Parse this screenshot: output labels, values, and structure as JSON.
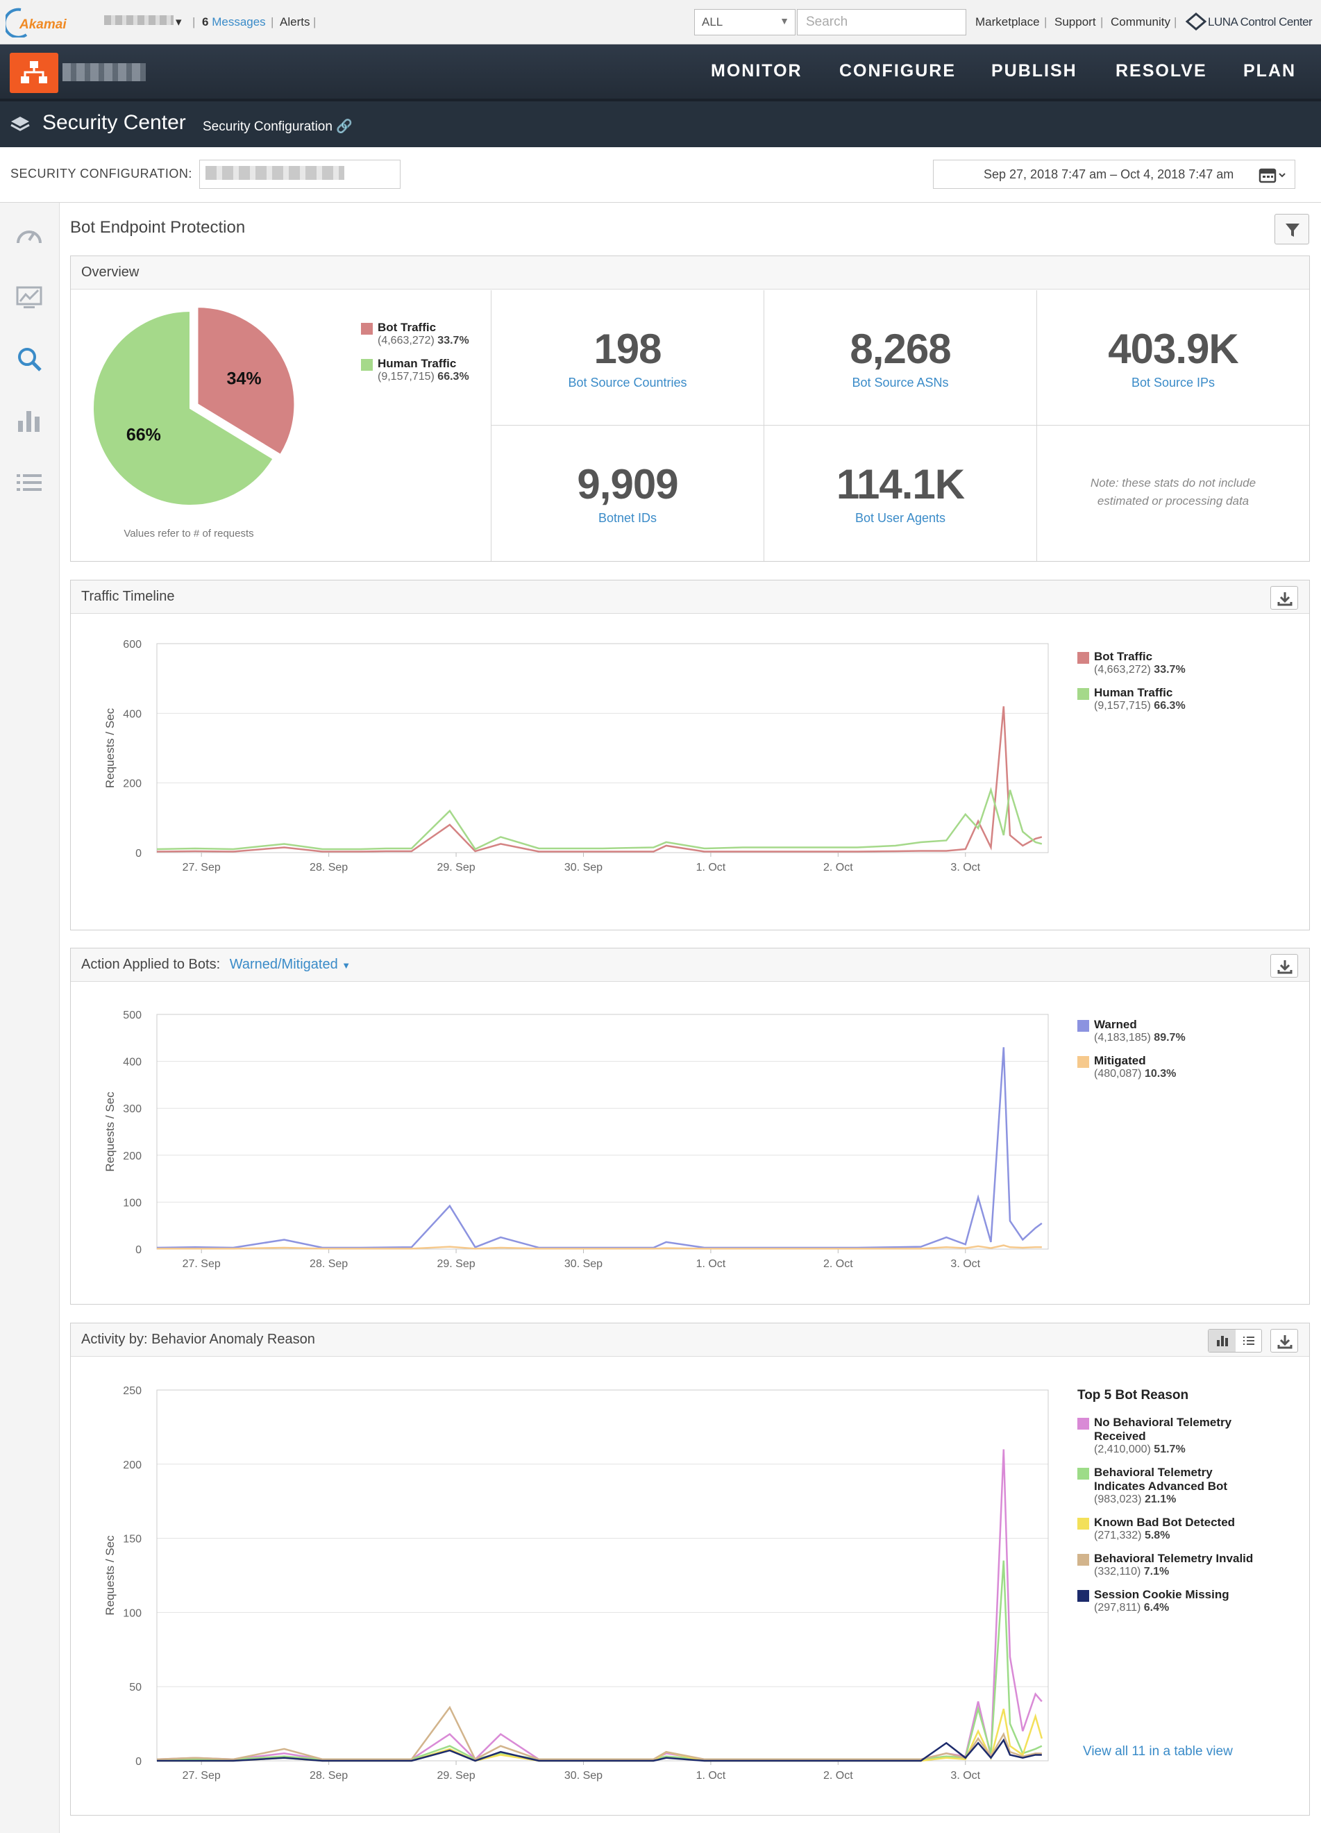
{
  "topbar": {
    "messages_count": "6",
    "messages_label": "Messages",
    "alerts_label": "Alerts",
    "scope_select": "ALL",
    "search_placeholder": "Search",
    "links": [
      "Marketplace",
      "Support",
      "Community"
    ],
    "luna_label": "LUNA Control Center",
    "logo_text": "Akamai"
  },
  "nav": {
    "items": [
      "MONITOR",
      "CONFIGURE",
      "PUBLISH",
      "RESOLVE",
      "PLAN"
    ]
  },
  "subnav": {
    "title": "Security Center",
    "breadcrumb": "Security Configuration"
  },
  "config": {
    "label": "SECURITY CONFIGURATION:",
    "date_range": "Sep 27, 2018  7:47 am  –  Oct 4, 2018  7:47 am"
  },
  "page": {
    "title": "Bot Endpoint Protection"
  },
  "overview": {
    "title": "Overview",
    "pie_note": "Values refer to # of requests",
    "pie_slices": [
      {
        "label": "34%",
        "name": "Bot Traffic",
        "count": "(4,663,272)",
        "pct": "33.7%",
        "value": 33.7,
        "color": "#d48383"
      },
      {
        "label": "66%",
        "name": "Human Traffic",
        "count": "(9,157,715)",
        "pct": "66.3%",
        "value": 66.3,
        "color": "#a5d98a"
      }
    ],
    "stats": [
      {
        "value": "198",
        "label": "Bot Source Countries"
      },
      {
        "value": "8,268",
        "label": "Bot Source ASNs"
      },
      {
        "value": "403.9K",
        "label": "Bot Source IPs"
      },
      {
        "value": "9,909",
        "label": "Botnet IDs"
      },
      {
        "value": "114.1K",
        "label": "Bot User Agents"
      }
    ],
    "note": "Note: these stats do not include estimated or processing data"
  },
  "timeline": {
    "title": "Traffic Timeline",
    "legend": [
      {
        "name": "Bot Traffic",
        "count": "(4,663,272)",
        "pct": "33.7%",
        "color": "#d48383"
      },
      {
        "name": "Human Traffic",
        "count": "(9,157,715)",
        "pct": "66.3%",
        "color": "#a5d98a"
      }
    ]
  },
  "actions": {
    "title": "Action Applied to Bots:",
    "filter": "Warned/Mitigated",
    "legend": [
      {
        "name": "Warned",
        "count": "(4,183,185)",
        "pct": "89.7%",
        "color": "#8c93e0"
      },
      {
        "name": "Mitigated",
        "count": "(480,087)",
        "pct": "10.3%",
        "color": "#f6c98c"
      }
    ]
  },
  "activity": {
    "title": "Activity by: Behavior Anomaly Reason",
    "legend_title": "Top 5 Bot Reason",
    "legend": [
      {
        "name": "No Behavioral Telemetry Received",
        "count": "(2,410,000)",
        "pct": "51.7%",
        "color": "#d98ad6"
      },
      {
        "name": "Behavioral Telemetry Indicates Advanced Bot",
        "count": "(983,023)",
        "pct": "21.1%",
        "color": "#9ddc88"
      },
      {
        "name": "Known Bad Bot Detected",
        "count": "(271,332)",
        "pct": "5.8%",
        "color": "#f3e05a"
      },
      {
        "name": "Behavioral Telemetry Invalid",
        "count": "(332,110)",
        "pct": "7.1%",
        "color": "#d2b48c"
      },
      {
        "name": "Session Cookie Missing",
        "count": "(297,811)",
        "pct": "6.4%",
        "color": "#1c2a6b"
      }
    ],
    "view_all": "View all 11 in a table view"
  },
  "chart_data": [
    {
      "type": "pie",
      "categories": [
        "Bot Traffic",
        "Human Traffic"
      ],
      "values": [
        33.7,
        66.3
      ],
      "labels": [
        "34%",
        "66%"
      ]
    },
    {
      "type": "line",
      "title": "Traffic Timeline",
      "ylabel": "Requests / Sec",
      "ylim": [
        0,
        600
      ],
      "yticks": [
        0,
        200,
        400,
        600
      ],
      "xticks": [
        "27. Sep",
        "28. Sep",
        "29. Sep",
        "30. Sep",
        "1. Oct",
        "2. Oct",
        "3. Oct"
      ],
      "x": [
        0,
        0.3,
        0.6,
        1.0,
        1.3,
        1.6,
        1.8,
        2.0,
        2.3,
        2.5,
        2.7,
        3.0,
        3.5,
        3.9,
        4.0,
        4.3,
        4.6,
        5.0,
        5.5,
        5.8,
        6.0,
        6.2,
        6.35,
        6.45,
        6.55,
        6.65,
        6.7,
        6.8,
        6.9,
        6.95
      ],
      "series": [
        {
          "name": "Bot Traffic",
          "color": "#d48383",
          "values": [
            3,
            4,
            3,
            15,
            3,
            3,
            4,
            4,
            80,
            4,
            25,
            3,
            3,
            3,
            20,
            3,
            3,
            3,
            3,
            4,
            5,
            5,
            10,
            90,
            15,
            420,
            50,
            20,
            40,
            45
          ]
        },
        {
          "name": "Human Traffic",
          "color": "#a5d98a",
          "values": [
            10,
            12,
            10,
            25,
            10,
            10,
            12,
            12,
            120,
            10,
            45,
            12,
            12,
            15,
            30,
            12,
            15,
            15,
            15,
            20,
            30,
            35,
            110,
            70,
            180,
            50,
            180,
            60,
            30,
            25
          ]
        }
      ]
    },
    {
      "type": "area",
      "title": "Action Applied to Bots: Warned/Mitigated",
      "ylabel": "Requests / Sec",
      "ylim": [
        0,
        500
      ],
      "yticks": [
        0,
        100,
        200,
        300,
        400,
        500
      ],
      "xticks": [
        "27. Sep",
        "28. Sep",
        "29. Sep",
        "30. Sep",
        "1. Oct",
        "2. Oct",
        "3. Oct"
      ],
      "x": [
        0,
        0.3,
        0.6,
        1.0,
        1.3,
        1.6,
        2.0,
        2.3,
        2.5,
        2.7,
        3.0,
        3.5,
        3.9,
        4.0,
        4.3,
        4.6,
        5.0,
        5.5,
        5.8,
        6.0,
        6.2,
        6.35,
        6.45,
        6.55,
        6.65,
        6.7,
        6.8,
        6.9,
        6.95
      ],
      "series": [
        {
          "name": "Warned",
          "color": "#8c93e0",
          "values": [
            3,
            4,
            3,
            20,
            3,
            3,
            4,
            92,
            4,
            25,
            3,
            3,
            3,
            15,
            3,
            3,
            3,
            3,
            4,
            5,
            25,
            10,
            110,
            15,
            430,
            60,
            20,
            45,
            55
          ]
        },
        {
          "name": "Mitigated",
          "color": "#f6c98c",
          "values": [
            1,
            1,
            1,
            3,
            1,
            1,
            1,
            5,
            1,
            3,
            1,
            1,
            1,
            2,
            1,
            1,
            1,
            1,
            1,
            1,
            4,
            2,
            6,
            2,
            8,
            4,
            3,
            4,
            4
          ]
        }
      ]
    },
    {
      "type": "line",
      "title": "Activity by: Behavior Anomaly Reason",
      "ylabel": "Requests / Sec",
      "ylim": [
        0,
        250
      ],
      "yticks": [
        0,
        50,
        100,
        150,
        200,
        250
      ],
      "xticks": [
        "27. Sep",
        "28. Sep",
        "29. Sep",
        "30. Sep",
        "1. Oct",
        "2. Oct",
        "3. Oct"
      ],
      "x": [
        0,
        0.3,
        0.6,
        1.0,
        1.3,
        1.6,
        2.0,
        2.3,
        2.5,
        2.7,
        3.0,
        3.5,
        3.9,
        4.0,
        4.3,
        4.6,
        5.0,
        5.5,
        5.8,
        6.0,
        6.2,
        6.35,
        6.45,
        6.55,
        6.65,
        6.7,
        6.8,
        6.9,
        6.95
      ],
      "series": [
        {
          "name": "No Behavioral Telemetry Received",
          "color": "#d98ad6",
          "values": [
            1,
            2,
            1,
            5,
            1,
            1,
            1,
            18,
            1,
            18,
            1,
            1,
            1,
            5,
            1,
            1,
            1,
            1,
            1,
            1,
            5,
            3,
            40,
            3,
            210,
            70,
            20,
            45,
            40
          ]
        },
        {
          "name": "Behavioral Telemetry Indicates Advanced Bot",
          "color": "#9ddc88",
          "values": [
            1,
            1,
            1,
            3,
            1,
            1,
            1,
            10,
            1,
            5,
            1,
            1,
            1,
            3,
            1,
            1,
            1,
            1,
            1,
            1,
            3,
            2,
            35,
            5,
            135,
            25,
            5,
            8,
            10
          ]
        },
        {
          "name": "Known Bad Bot Detected",
          "color": "#f3e05a",
          "values": [
            0,
            0,
            0,
            2,
            0,
            0,
            0,
            8,
            0,
            4,
            0,
            0,
            0,
            6,
            0,
            0,
            0,
            0,
            0,
            0,
            2,
            1,
            20,
            2,
            35,
            10,
            4,
            30,
            15
          ]
        },
        {
          "name": "Behavioral Telemetry Invalid",
          "color": "#d2b48c",
          "values": [
            1,
            2,
            1,
            8,
            1,
            1,
            1,
            36,
            1,
            10,
            1,
            1,
            1,
            6,
            1,
            1,
            1,
            1,
            1,
            1,
            5,
            2,
            15,
            3,
            18,
            6,
            3,
            5,
            5
          ]
        },
        {
          "name": "Session Cookie Missing",
          "color": "#1c2a6b",
          "values": [
            0,
            0,
            0,
            2,
            0,
            0,
            0,
            7,
            0,
            6,
            0,
            0,
            0,
            2,
            0,
            0,
            0,
            0,
            0,
            0,
            12,
            2,
            12,
            2,
            14,
            4,
            2,
            4,
            4
          ]
        }
      ]
    }
  ]
}
